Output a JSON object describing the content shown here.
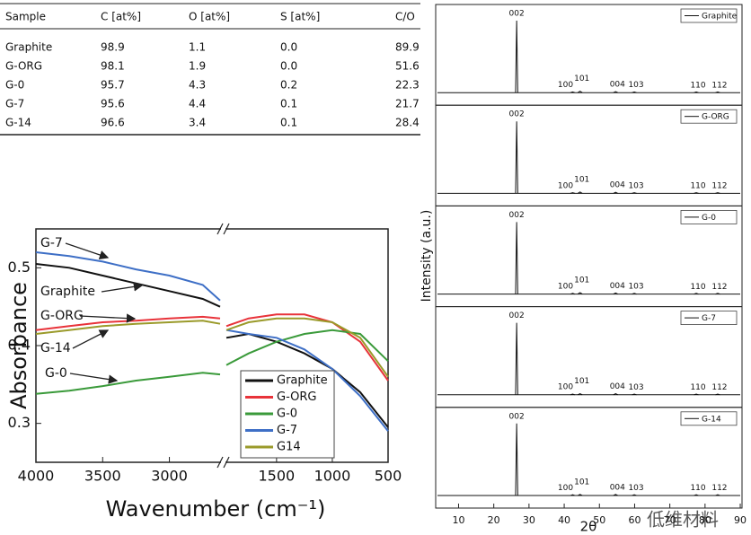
{
  "table": {
    "headers": [
      "Sample",
      "C [at%]",
      "O [at%]",
      "S [at%]",
      "C/O"
    ],
    "rows": [
      [
        "Graphite",
        "98.9",
        "1.1",
        "0.0",
        "89.9"
      ],
      [
        "G-ORG",
        "98.1",
        "1.9",
        "0.0",
        "51.6"
      ],
      [
        "G-0",
        "95.7",
        "4.3",
        "0.2",
        "22.3"
      ],
      [
        "G-7",
        "95.6",
        "4.4",
        "0.1",
        "21.7"
      ],
      [
        "G-14",
        "96.6",
        "3.4",
        "0.1",
        "28.4"
      ]
    ]
  },
  "chart_data": [
    {
      "type": "line",
      "xlabel": "Wavenumber (cm⁻¹)",
      "ylabel": "Absorbance",
      "xlim": [
        4000,
        500
      ],
      "xbreak": [
        2620,
        1950
      ],
      "ylim": [
        0.25,
        0.55
      ],
      "xticks": [
        4000,
        3500,
        3000,
        1500,
        1000,
        500
      ],
      "yticks": [
        0.3,
        0.4,
        0.5
      ],
      "x": [
        4000,
        3750,
        3500,
        3250,
        3000,
        2750,
        2620,
        1950,
        1750,
        1500,
        1250,
        1000,
        750,
        500
      ],
      "series": [
        {
          "name": "Graphite",
          "color": "#111111",
          "values": [
            0.505,
            0.5,
            0.49,
            0.48,
            0.47,
            0.46,
            0.45,
            0.41,
            0.415,
            0.405,
            0.39,
            0.37,
            0.34,
            0.295
          ]
        },
        {
          "name": "G-ORG",
          "color": "#e8333a",
          "values": [
            0.42,
            0.425,
            0.43,
            0.432,
            0.435,
            0.437,
            0.435,
            0.425,
            0.435,
            0.44,
            0.44,
            0.43,
            0.405,
            0.355
          ]
        },
        {
          "name": "G-0",
          "color": "#3a9a3a",
          "values": [
            0.338,
            0.342,
            0.348,
            0.355,
            0.36,
            0.365,
            0.363,
            0.375,
            0.39,
            0.405,
            0.415,
            0.42,
            0.415,
            0.38
          ]
        },
        {
          "name": "G-7",
          "color": "#3e6fc6",
          "values": [
            0.52,
            0.515,
            0.508,
            0.498,
            0.49,
            0.478,
            0.458,
            0.42,
            0.415,
            0.41,
            0.395,
            0.37,
            0.335,
            0.29
          ]
        },
        {
          "name": "G14",
          "color": "#9a9a2a",
          "values": [
            0.415,
            0.42,
            0.425,
            0.428,
            0.43,
            0.432,
            0.428,
            0.42,
            0.43,
            0.435,
            0.435,
            0.43,
            0.41,
            0.36
          ]
        }
      ],
      "annotations": [
        "G-7",
        "Graphite",
        "G-ORG",
        "G-14",
        "G-0"
      ],
      "legend": "lower right"
    },
    {
      "type": "line",
      "xlabel": "2θ",
      "ylabel": "Intensity (a.u.)",
      "xlim": [
        3.5,
        90.5
      ],
      "xticks": [
        10,
        20,
        30,
        40,
        50,
        60,
        70,
        80,
        90
      ],
      "x": [
        26.5,
        42.4,
        44.5,
        54.6,
        59.9,
        77.5,
        83.6
      ],
      "peak_labels": [
        "002",
        "100",
        "101",
        "004",
        "103",
        "110",
        "112"
      ],
      "series": [
        {
          "name": "Graphite",
          "color": "#111111",
          "values": [
            100,
            0.8,
            2,
            1.5,
            0.6,
            0.4,
            0.4
          ]
        },
        {
          "name": "G-ORG",
          "color": "#111111",
          "values": [
            100,
            0.8,
            2,
            1.5,
            0.6,
            0.4,
            0.4
          ]
        },
        {
          "name": "G-0",
          "color": "#111111",
          "values": [
            100,
            0.8,
            2,
            1.5,
            0.6,
            0.4,
            0.4
          ]
        },
        {
          "name": "G-7",
          "color": "#111111",
          "values": [
            100,
            0.8,
            1.5,
            1.5,
            0.6,
            0.4,
            0.4
          ]
        },
        {
          "name": "G-14",
          "color": "#111111",
          "values": [
            100,
            0.8,
            1.5,
            1.5,
            0.6,
            0.4,
            0.4
          ]
        }
      ],
      "legend": "upper right"
    }
  ],
  "watermark": "低维材料"
}
